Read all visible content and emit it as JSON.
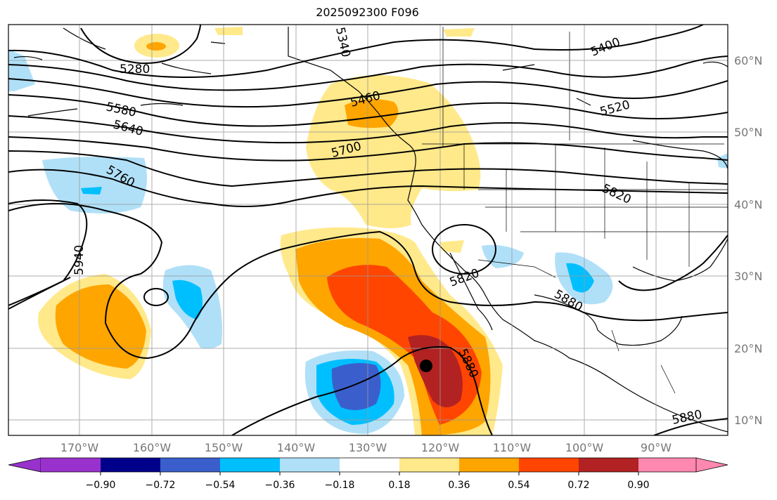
{
  "title": "2025092300 F096",
  "map": {
    "lon_ticks": [
      "170°W",
      "160°W",
      "150°W",
      "140°W",
      "130°W",
      "120°W",
      "110°W",
      "100°W",
      "90°W"
    ],
    "lat_ticks": [
      "60°N",
      "50°N",
      "40°N",
      "30°N",
      "20°N",
      "10°N"
    ],
    "contour_labels": [
      "5280",
      "5400",
      "5520",
      "5580",
      "5640",
      "5700",
      "5760",
      "5820",
      "5820",
      "5880",
      "5880",
      "5880",
      "5940",
      "5460",
      "5340"
    ],
    "marker": "storm-center-dot"
  },
  "colorbar": {
    "ticks": [
      "−0.90",
      "−0.72",
      "−0.54",
      "−0.36",
      "−0.18",
      "0.18",
      "0.36",
      "0.54",
      "0.72",
      "0.90"
    ],
    "colors": [
      "#9932cc",
      "#00008b",
      "#3a5fcd",
      "#00bfff",
      "#b0e0f8",
      "#ffffff",
      "#ffe98a",
      "#ffa500",
      "#ff4500",
      "#b22222",
      "#ff88b0"
    ]
  }
}
